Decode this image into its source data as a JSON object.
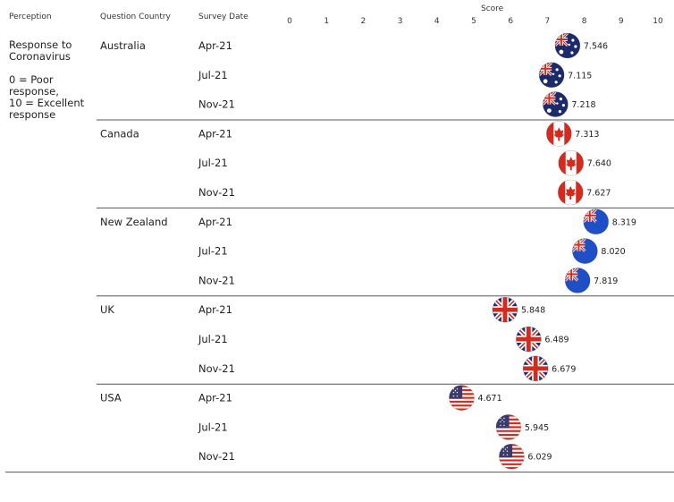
{
  "headers": {
    "perception": "Perception",
    "country": "Question Country",
    "date": "Survey Date"
  },
  "perception": {
    "title_line1": "Response to",
    "title_line2": "Coronavirus",
    "scale_line1": "0 = Poor",
    "scale_line2": "response,",
    "scale_line3": "10 = Excellent",
    "scale_line4": "response"
  },
  "colors": {
    "divider": "#555555",
    "flag_blue_au": "#1b2a6b",
    "flag_red": "#d52b1e",
    "flag_blue_nz": "#1f4fc7",
    "flag_blue_uk": "#1c2f7a",
    "flag_blue_us": "#3c3b6e"
  },
  "chart_data": {
    "type": "scatter",
    "xlabel": "Score",
    "xlim": [
      0,
      10
    ],
    "xticks": [
      0,
      1,
      2,
      3,
      4,
      5,
      6,
      7,
      8,
      9,
      10
    ],
    "markers": "country flag icons",
    "groups": [
      {
        "country": "Australia",
        "flag": "australia-flag-icon",
        "points": [
          {
            "date": "Apr-21",
            "value": 7.546,
            "label": "7.546"
          },
          {
            "date": "Jul-21",
            "value": 7.115,
            "label": "7.115"
          },
          {
            "date": "Nov-21",
            "value": 7.218,
            "label": "7.218"
          }
        ]
      },
      {
        "country": "Canada",
        "flag": "canada-flag-icon",
        "points": [
          {
            "date": "Apr-21",
            "value": 7.313,
            "label": "7.313"
          },
          {
            "date": "Jul-21",
            "value": 7.64,
            "label": "7.640"
          },
          {
            "date": "Nov-21",
            "value": 7.627,
            "label": "7.627"
          }
        ]
      },
      {
        "country": "New Zealand",
        "flag": "new-zealand-flag-icon",
        "points": [
          {
            "date": "Apr-21",
            "value": 8.319,
            "label": "8.319"
          },
          {
            "date": "Jul-21",
            "value": 8.02,
            "label": "8.020"
          },
          {
            "date": "Nov-21",
            "value": 7.819,
            "label": "7.819"
          }
        ]
      },
      {
        "country": "UK",
        "flag": "uk-flag-icon",
        "points": [
          {
            "date": "Apr-21",
            "value": 5.848,
            "label": "5.848"
          },
          {
            "date": "Jul-21",
            "value": 6.489,
            "label": "6.489"
          },
          {
            "date": "Nov-21",
            "value": 6.679,
            "label": "6.679"
          }
        ]
      },
      {
        "country": "USA",
        "flag": "usa-flag-icon",
        "points": [
          {
            "date": "Apr-21",
            "value": 4.671,
            "label": "4.671"
          },
          {
            "date": "Jul-21",
            "value": 5.945,
            "label": "5.945"
          },
          {
            "date": "Nov-21",
            "value": 6.029,
            "label": "6.029"
          }
        ]
      }
    ]
  }
}
